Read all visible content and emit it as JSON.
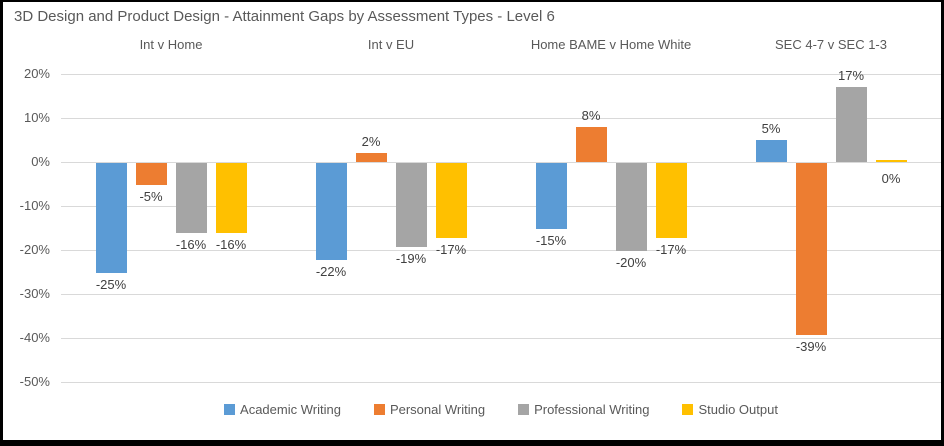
{
  "title": "3D Design and Product Design - Attainment Gaps by Assessment Types - Level 6",
  "chart_data": {
    "type": "bar",
    "title": "3D Design and Product Design - Attainment Gaps by Assessment Types - Level 6",
    "categories": [
      "Int v Home",
      "Int v EU",
      "Home BAME v Home White",
      "SEC 4-7 v SEC 1-3"
    ],
    "series": [
      {
        "name": "Academic Writing",
        "color": "#5B9BD5",
        "values": [
          -25,
          -22,
          -15,
          5
        ]
      },
      {
        "name": "Personal Writing",
        "color": "#ED7D31",
        "values": [
          -5,
          2,
          8,
          -39
        ]
      },
      {
        "name": "Professional Writing",
        "color": "#A5A5A5",
        "values": [
          -16,
          -19,
          -20,
          17
        ]
      },
      {
        "name": "Studio Output",
        "color": "#FFC000",
        "values": [
          -16,
          -17,
          -17,
          0
        ]
      }
    ],
    "value_labels": [
      [
        "-25%",
        "-22%",
        "-15%",
        "5%"
      ],
      [
        "-5%",
        "2%",
        "8%",
        "-39%"
      ],
      [
        "-16%",
        "-19%",
        "-20%",
        "17%"
      ],
      [
        "-16%",
        "-17%",
        "-17%",
        "0%"
      ]
    ],
    "xlabel": "",
    "ylabel": "",
    "ylim": [
      -50,
      20
    ],
    "yticks": [
      20,
      10,
      0,
      -10,
      -20,
      -30,
      -40,
      -50
    ],
    "ytick_labels": [
      "20%",
      "10%",
      "0%",
      "-10%",
      "-20%",
      "-30%",
      "-40%",
      "-50%"
    ],
    "grid": true,
    "legend_position": "bottom",
    "colors": {
      "grid": "#D9D9D9",
      "zero_line": "#D9D9D9",
      "axis_text": "#595959",
      "value_label_text": "#404040",
      "title_text": "#595959"
    }
  }
}
